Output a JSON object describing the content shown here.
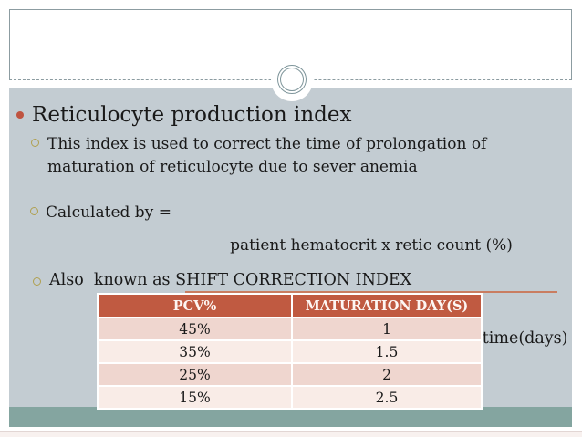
{
  "slide": {
    "title": "Reticulocyte production index",
    "bullets": {
      "sub1_line1": "This index is used to correct the time of prolongation of",
      "sub1_line2": "maturation of reticulocyte due to sever anemia",
      "calc_label": "Calculated by =",
      "fraction_numerator": "patient hematocrit x retic count (%)",
      "fraction_denominator": "normal hematocrit x retic maturation time(days)",
      "also_line": "Also  known as SHIFT CORRECTION INDEX"
    },
    "table": {
      "headers": [
        "PCV%",
        "MATURATION DAY(S)"
      ],
      "rows": [
        [
          "45%",
          "1"
        ],
        [
          "35%",
          "1.5"
        ],
        [
          "25%",
          "2"
        ],
        [
          "15%",
          "2.5"
        ]
      ]
    },
    "colors": {
      "content_background": "#c3ccd2",
      "teal_band": "#84a5a0",
      "table_header": "#c05a41",
      "table_row_dark": "#efd6cf",
      "table_row_light": "#f9ece7",
      "main_bullet": "#bf5340",
      "sub_bullet_ring": "#b0a050",
      "fraction_line": "#c97d61",
      "frame_border": "#8c9ca1"
    }
  }
}
